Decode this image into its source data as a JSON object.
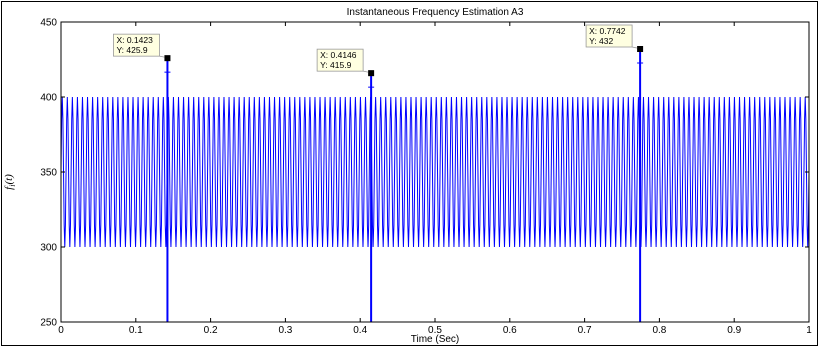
{
  "chart_data": {
    "type": "line",
    "title": "Instantaneous Frequency Estimation A3",
    "xlabel": "Time (Sec)",
    "ylabel": "f_i(t)",
    "xlim": [
      0,
      1
    ],
    "ylim": [
      250,
      450
    ],
    "xticks": [
      0,
      0.1,
      0.2,
      0.3,
      0.4,
      0.5,
      0.6,
      0.7,
      0.8,
      0.9,
      1
    ],
    "xtick_labels": [
      "0",
      "0.1",
      "0.2",
      "0.3",
      "0.4",
      "0.5",
      "0.6",
      "0.7",
      "0.8",
      "0.9",
      "1"
    ],
    "yticks": [
      250,
      300,
      350,
      400,
      450
    ],
    "ytick_labels": [
      "250",
      "300",
      "350",
      "400",
      "450"
    ],
    "series": [
      {
        "color": "#0000ff",
        "band": {
          "low": 300,
          "high": 400
        },
        "oscillation_cycles": 148,
        "spikes": [
          {
            "x": 0.1423,
            "high": 425.9,
            "low": 250
          },
          {
            "x": 0.4146,
            "high": 415.9,
            "low": 250
          },
          {
            "x": 0.7742,
            "high": 432,
            "low": 250
          }
        ]
      }
    ],
    "datatips": [
      {
        "x_text": "X: 0.1423",
        "y_text": "Y: 425.9",
        "x": 0.1423,
        "y": 425.9
      },
      {
        "x_text": "X: 0.4146",
        "y_text": "Y: 415.9",
        "x": 0.4146,
        "y": 415.9
      },
      {
        "x_text": "X: 0.7742",
        "y_text": "Y: 432",
        "x": 0.7742,
        "y": 432
      }
    ],
    "grid": false,
    "legend": false
  }
}
